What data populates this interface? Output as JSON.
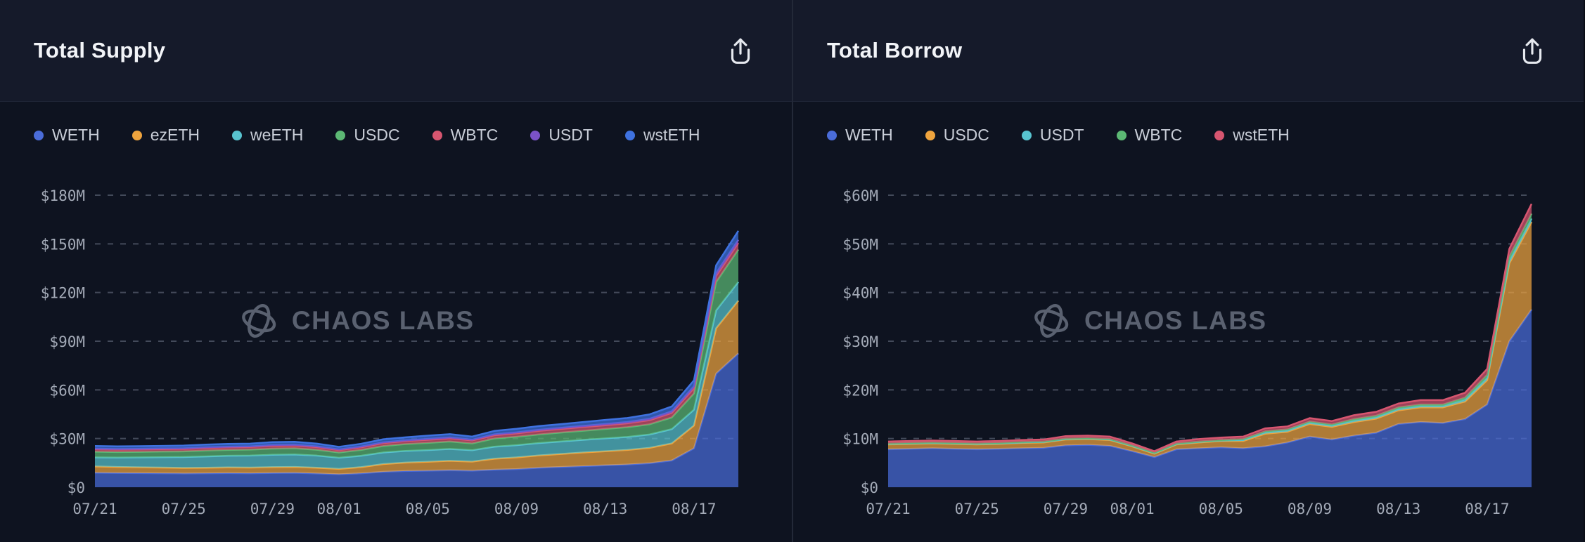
{
  "watermark": {
    "text": "CHAOS LABS",
    "logo": "chaos-labs-atom-logo"
  },
  "cards": [
    {
      "title": "Total Supply",
      "export_action": "Export chart"
    },
    {
      "title": "Total Borrow",
      "export_action": "Export chart"
    }
  ],
  "chart_data": [
    {
      "type": "area",
      "stacked": true,
      "title": "Total Supply",
      "unit": "USD millions",
      "grid": "dashed-horizontal",
      "legend_position": "top-left",
      "ylim": [
        0,
        187
      ],
      "y_ticks": {
        "values": [
          0,
          30,
          60,
          90,
          120,
          150,
          180
        ],
        "labels": [
          "$0",
          "$30M",
          "$60M",
          "$90M",
          "$120M",
          "$150M",
          "$180M"
        ]
      },
      "x": [
        "07/21",
        "07/22",
        "07/23",
        "07/24",
        "07/25",
        "07/26",
        "07/27",
        "07/28",
        "07/29",
        "07/30",
        "07/31",
        "08/01",
        "08/02",
        "08/03",
        "08/04",
        "08/05",
        "08/06",
        "08/07",
        "08/08",
        "08/09",
        "08/10",
        "08/11",
        "08/12",
        "08/13",
        "08/14",
        "08/15",
        "08/16",
        "08/17",
        "08/18",
        "08/19"
      ],
      "x_tick_indices": [
        0,
        4,
        8,
        11,
        15,
        19,
        23,
        27
      ],
      "x_tick_labels": [
        "07/21",
        "07/25",
        "07/29",
        "08/01",
        "08/05",
        "08/09",
        "08/13",
        "08/17"
      ],
      "series": [
        {
          "name": "WETH",
          "color": "#4a6cd9",
          "values": [
            9.0,
            8.8,
            8.7,
            8.6,
            8.5,
            8.6,
            8.7,
            8.6,
            8.8,
            8.9,
            8.5,
            8.0,
            8.6,
            9.5,
            10.0,
            10.2,
            10.5,
            10.2,
            10.8,
            11.2,
            12.0,
            12.5,
            13.0,
            13.5,
            14.0,
            14.8,
            16.5,
            24.0,
            70.0,
            82.5
          ]
        },
        {
          "name": "ezETH",
          "color": "#efa43e",
          "values": [
            3.8,
            3.7,
            3.6,
            3.5,
            3.4,
            3.4,
            3.5,
            3.5,
            3.6,
            3.6,
            3.5,
            3.3,
            3.8,
            4.8,
            5.2,
            5.5,
            5.8,
            5.6,
            6.8,
            7.2,
            7.6,
            8.0,
            8.4,
            8.7,
            9.0,
            9.5,
            10.5,
            14.0,
            28.0,
            32.5
          ]
        },
        {
          "name": "weETH",
          "color": "#58c3cf",
          "values": [
            5.6,
            5.8,
            6.1,
            6.4,
            6.7,
            7.0,
            7.2,
            7.4,
            7.6,
            7.7,
            7.5,
            6.9,
            7.0,
            7.1,
            7.2,
            7.2,
            7.3,
            7.0,
            7.4,
            7.5,
            7.6,
            7.7,
            7.8,
            7.9,
            8.0,
            8.2,
            8.8,
            9.8,
            11.0,
            11.5
          ]
        },
        {
          "name": "USDC",
          "color": "#5cb874",
          "values": [
            3.5,
            3.4,
            3.4,
            3.5,
            3.5,
            3.6,
            3.6,
            3.7,
            3.8,
            3.8,
            3.6,
            3.2,
            3.6,
            4.0,
            4.2,
            4.4,
            4.6,
            4.2,
            5.0,
            5.2,
            5.3,
            5.5,
            5.6,
            5.8,
            6.0,
            6.3,
            7.2,
            10.0,
            17.5,
            20.0
          ]
        },
        {
          "name": "WBTC",
          "color": "#d75670",
          "values": [
            1.5,
            1.5,
            1.5,
            1.5,
            1.5,
            1.6,
            1.6,
            1.6,
            1.7,
            1.7,
            1.6,
            1.5,
            1.6,
            1.8,
            1.8,
            1.9,
            1.9,
            1.8,
            2.0,
            2.1,
            2.2,
            2.2,
            2.3,
            2.3,
            2.4,
            2.5,
            2.8,
            3.2,
            3.7,
            4.0
          ]
        },
        {
          "name": "USDT",
          "color": "#7b52c7",
          "values": [
            0.4,
            0.4,
            0.4,
            0.4,
            0.4,
            0.4,
            0.4,
            0.4,
            0.5,
            0.5,
            0.5,
            0.4,
            0.5,
            0.5,
            0.5,
            0.6,
            0.6,
            0.5,
            0.6,
            0.6,
            0.7,
            0.7,
            0.7,
            0.8,
            0.8,
            0.9,
            1.0,
            1.3,
            1.8,
            2.0
          ]
        },
        {
          "name": "wstETH",
          "color": "#3f72e0",
          "values": [
            1.6,
            1.6,
            1.6,
            1.6,
            1.7,
            1.7,
            1.7,
            1.7,
            1.8,
            1.8,
            1.7,
            1.6,
            1.7,
            1.9,
            1.9,
            2.0,
            2.0,
            1.9,
            2.1,
            2.2,
            2.3,
            2.3,
            2.4,
            2.5,
            2.5,
            2.7,
            3.0,
            3.6,
            4.8,
            5.5
          ]
        }
      ]
    },
    {
      "type": "area",
      "stacked": true,
      "title": "Total Borrow",
      "unit": "USD millions",
      "grid": "dashed-horizontal",
      "legend_position": "top-left",
      "ylim": [
        0,
        62
      ],
      "y_ticks": {
        "values": [
          0,
          10,
          20,
          30,
          40,
          50,
          60
        ],
        "labels": [
          "$0",
          "$10M",
          "$20M",
          "$30M",
          "$40M",
          "$50M",
          "$60M"
        ]
      },
      "x": [
        "07/21",
        "07/22",
        "07/23",
        "07/24",
        "07/25",
        "07/26",
        "07/27",
        "07/28",
        "07/29",
        "07/30",
        "07/31",
        "08/01",
        "08/02",
        "08/03",
        "08/04",
        "08/05",
        "08/06",
        "08/07",
        "08/08",
        "08/09",
        "08/10",
        "08/11",
        "08/12",
        "08/13",
        "08/14",
        "08/15",
        "08/16",
        "08/17",
        "08/18",
        "08/19"
      ],
      "x_tick_indices": [
        0,
        4,
        8,
        11,
        15,
        19,
        23,
        27
      ],
      "x_tick_labels": [
        "07/21",
        "07/25",
        "07/29",
        "08/01",
        "08/05",
        "08/09",
        "08/13",
        "08/17"
      ],
      "series": [
        {
          "name": "WETH",
          "color": "#4a6cd9",
          "values": [
            7.8,
            7.9,
            8.0,
            7.9,
            7.8,
            7.9,
            8.0,
            8.1,
            8.6,
            8.7,
            8.5,
            7.4,
            6.2,
            7.8,
            8.0,
            8.2,
            8.0,
            8.4,
            9.2,
            10.4,
            9.8,
            10.6,
            11.2,
            13.0,
            13.4,
            13.2,
            14.0,
            17.0,
            30.0,
            36.5
          ]
        },
        {
          "name": "USDC",
          "color": "#efa43e",
          "values": [
            1.0,
            1.0,
            1.0,
            1.0,
            1.0,
            1.0,
            1.1,
            1.1,
            1.2,
            1.2,
            1.2,
            1.0,
            0.7,
            1.0,
            1.2,
            1.3,
            1.5,
            2.6,
            2.2,
            2.6,
            2.6,
            2.8,
            2.9,
            2.8,
            3.0,
            3.2,
            3.6,
            5.0,
            16.0,
            18.0
          ]
        },
        {
          "name": "USDT",
          "color": "#58c3cf",
          "values": [
            0.1,
            0.1,
            0.1,
            0.1,
            0.1,
            0.1,
            0.1,
            0.1,
            0.1,
            0.1,
            0.1,
            0.1,
            0.1,
            0.1,
            0.1,
            0.1,
            0.2,
            0.3,
            0.3,
            0.3,
            0.3,
            0.3,
            0.3,
            0.3,
            0.3,
            0.3,
            0.4,
            0.5,
            0.6,
            0.7
          ]
        },
        {
          "name": "WBTC",
          "color": "#5cb874",
          "values": [
            0.1,
            0.1,
            0.1,
            0.1,
            0.1,
            0.1,
            0.1,
            0.1,
            0.1,
            0.1,
            0.1,
            0.1,
            0.1,
            0.1,
            0.1,
            0.1,
            0.2,
            0.2,
            0.2,
            0.2,
            0.2,
            0.3,
            0.3,
            0.3,
            0.3,
            0.3,
            0.4,
            0.6,
            0.8,
            1.0
          ]
        },
        {
          "name": "wstETH",
          "color": "#d75670",
          "values": [
            0.4,
            0.4,
            0.4,
            0.4,
            0.4,
            0.4,
            0.4,
            0.4,
            0.5,
            0.5,
            0.5,
            0.4,
            0.3,
            0.4,
            0.5,
            0.5,
            0.5,
            0.6,
            0.6,
            0.7,
            0.7,
            0.8,
            0.8,
            0.8,
            0.9,
            0.9,
            1.0,
            1.2,
            1.6,
            2.0
          ]
        }
      ]
    }
  ]
}
